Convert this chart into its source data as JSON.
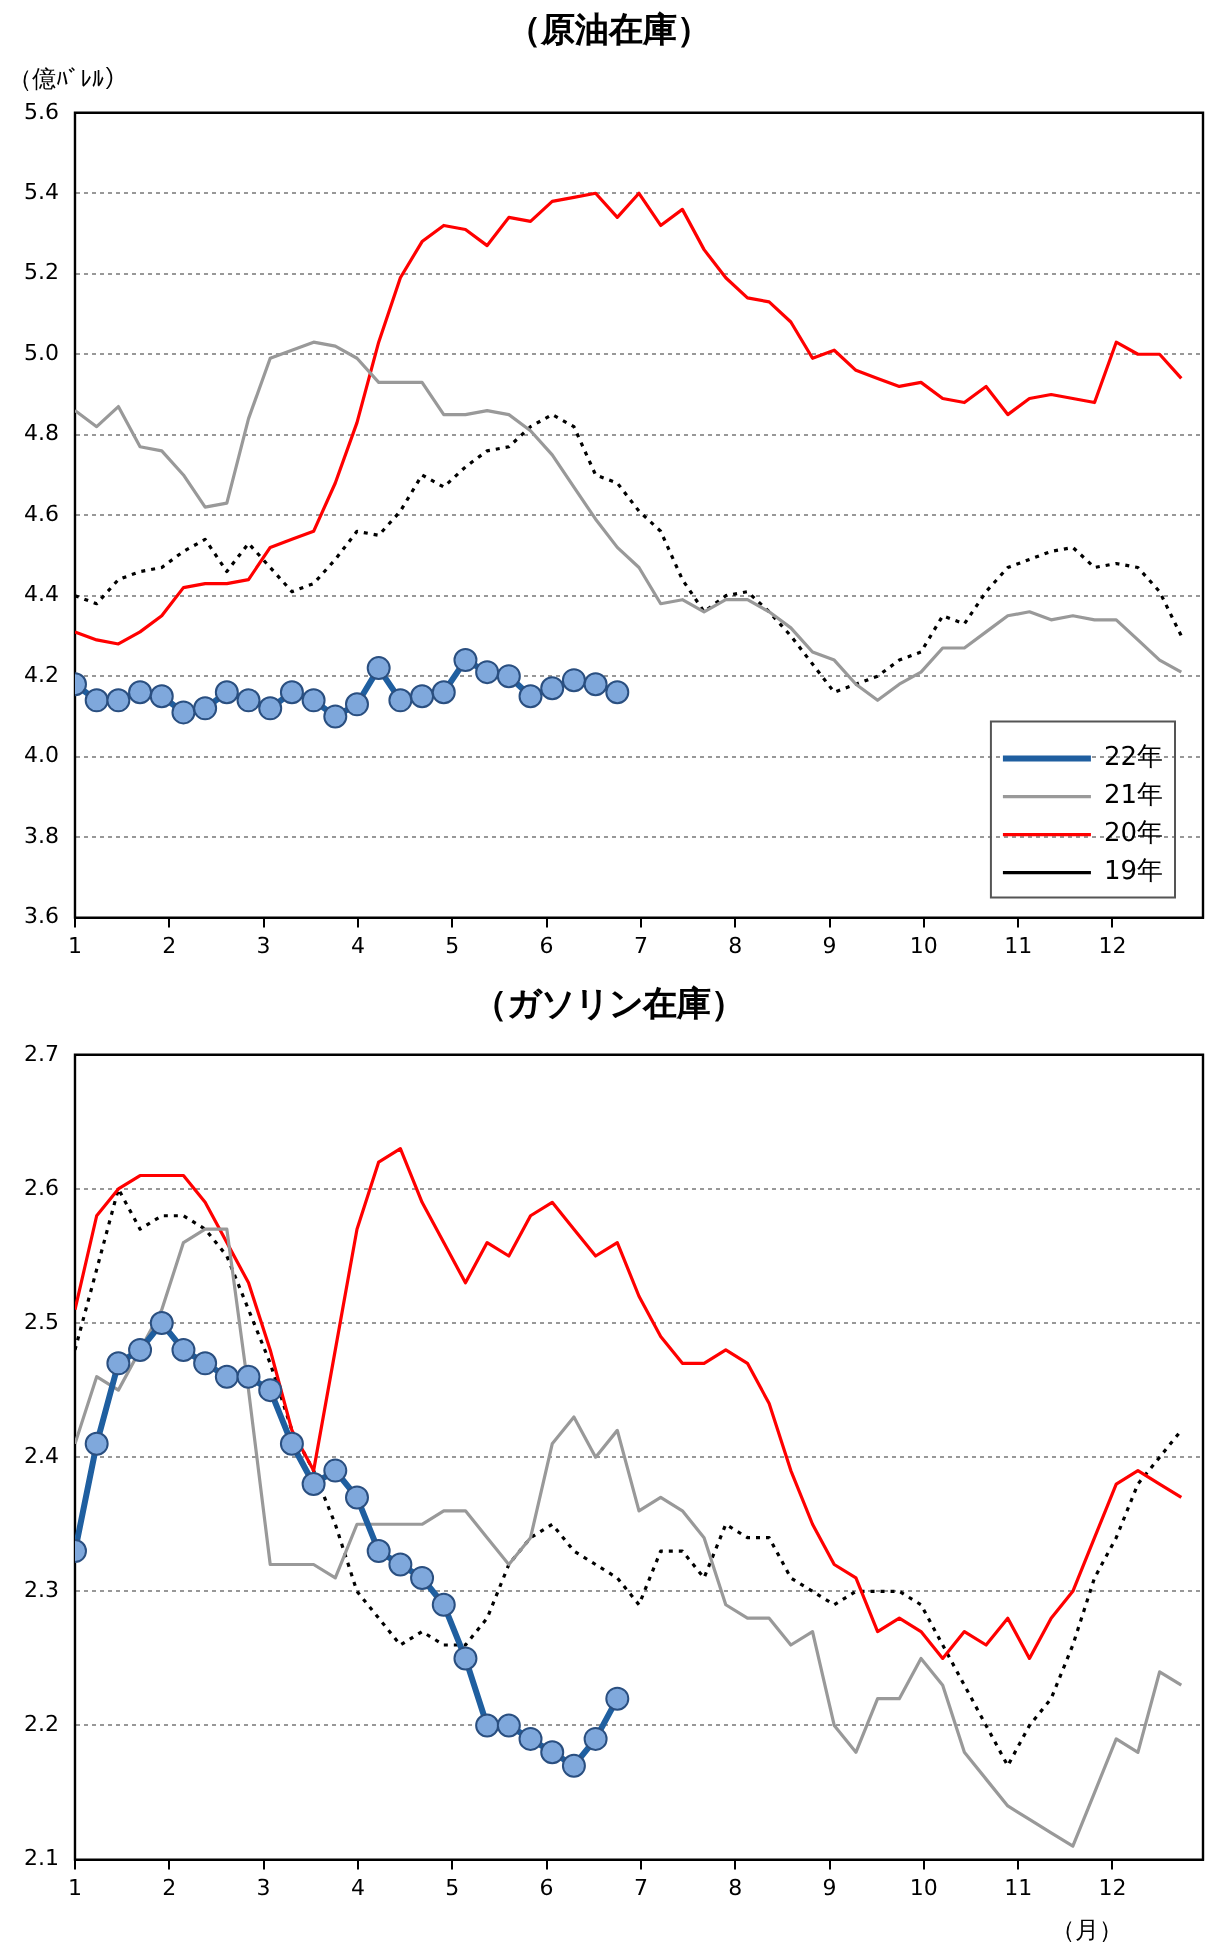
{
  "chart_data": [
    {
      "type": "line",
      "title": "（原油在庫）",
      "ylabel": "（億ﾊﾞﾚﾙ）",
      "x": [
        1,
        1.23,
        1.46,
        1.69,
        1.92,
        2.15,
        2.38,
        2.61,
        2.84,
        3.07,
        3.3,
        3.53,
        3.76,
        3.99,
        4.22,
        4.45,
        4.68,
        4.91,
        5.14,
        5.37,
        5.6,
        5.83,
        6.06,
        6.29,
        6.52,
        6.75,
        6.98,
        7.21,
        7.44,
        7.67,
        7.9,
        8.13,
        8.36,
        8.59,
        8.82,
        9.05,
        9.28,
        9.51,
        9.74,
        9.97,
        10.2,
        10.43,
        10.66,
        10.89,
        11.12,
        11.35,
        11.58,
        11.81,
        12.04,
        12.27,
        12.5,
        12.73
      ],
      "xlim": [
        1,
        12.96
      ],
      "xticks": [
        1,
        2,
        3,
        4,
        5,
        6,
        7,
        8,
        9,
        10,
        11,
        12
      ],
      "ylim": [
        3.6,
        5.6
      ],
      "yticks": [
        3.6,
        3.8,
        {
          "value": 4,
          "label": "4.0"
        },
        4.2,
        4.4,
        4.6,
        4.8,
        {
          "value": 5,
          "label": "5.0"
        },
        5.2,
        5.4,
        5.6
      ],
      "grid": "y",
      "legend": "bottom right",
      "series": [
        {
          "name": "22年",
          "color": "#1f5fa0",
          "marker": "circle",
          "x": [
            1,
            1.23,
            1.46,
            1.69,
            1.92,
            2.15,
            2.38,
            2.61,
            2.84,
            3.07,
            3.3,
            3.53,
            3.76,
            3.99,
            4.22,
            4.45,
            4.68,
            4.91,
            5.14,
            5.37,
            5.6,
            5.83,
            6.06,
            6.29,
            6.52,
            6.75
          ],
          "values": [
            4.18,
            4.14,
            4.14,
            4.16,
            4.15,
            4.11,
            4.12,
            4.16,
            4.14,
            4.12,
            4.16,
            4.14,
            4.1,
            4.13,
            4.22,
            4.14,
            4.15,
            4.16,
            4.24,
            4.21,
            4.2,
            4.15,
            4.17,
            4.19,
            4.18,
            4.16
          ]
        },
        {
          "name": "21年",
          "color": "#999999",
          "values": [
            4.86,
            4.82,
            4.87,
            4.77,
            4.76,
            4.7,
            4.62,
            4.63,
            4.84,
            4.99,
            5.01,
            5.03,
            5.02,
            4.99,
            4.93,
            4.93,
            4.93,
            4.85,
            4.85,
            4.86,
            4.85,
            4.81,
            4.75,
            4.67,
            4.59,
            4.52,
            4.47,
            4.38,
            4.39,
            4.36,
            4.39,
            4.39,
            4.36,
            4.32,
            4.26,
            4.24,
            4.18,
            4.14,
            4.18,
            4.21,
            4.27,
            4.27,
            4.31,
            4.35,
            4.36,
            4.34,
            4.35,
            4.34,
            4.34,
            4.29,
            4.24,
            4.21
          ]
        },
        {
          "name": "20年",
          "color": "#ff0000",
          "values": [
            4.31,
            4.29,
            4.28,
            4.31,
            4.35,
            4.42,
            4.43,
            4.43,
            4.44,
            4.52,
            4.54,
            4.56,
            4.68,
            4.83,
            5.03,
            5.19,
            5.28,
            5.32,
            5.31,
            5.27,
            5.34,
            5.33,
            5.38,
            5.39,
            5.4,
            5.34,
            5.4,
            5.32,
            5.36,
            5.26,
            5.19,
            5.14,
            5.13,
            5.08,
            4.99,
            5.01,
            4.96,
            4.94,
            4.92,
            4.93,
            4.89,
            4.88,
            4.92,
            4.85,
            4.89,
            4.9,
            4.89,
            4.88,
            5.03,
            5,
            5,
            4.94
          ]
        },
        {
          "name": "19年",
          "color": "#000000",
          "line_style": "dotted",
          "values": [
            4.4,
            4.38,
            4.44,
            4.46,
            4.47,
            4.51,
            4.54,
            4.46,
            4.53,
            4.47,
            4.41,
            4.43,
            4.49,
            4.56,
            4.55,
            4.61,
            4.7,
            4.67,
            4.72,
            4.76,
            4.77,
            4.82,
            4.85,
            4.82,
            4.7,
            4.68,
            4.61,
            4.56,
            4.44,
            4.36,
            4.4,
            4.41,
            4.36,
            4.3,
            4.23,
            4.16,
            4.18,
            4.2,
            4.24,
            4.26,
            4.35,
            4.33,
            4.41,
            4.47,
            4.49,
            4.51,
            4.52,
            4.47,
            4.48,
            4.47,
            4.41,
            4.3
          ]
        }
      ]
    },
    {
      "type": "line",
      "title": "（ガソリン在庫）",
      "xlabel": "（月）",
      "x": [
        1,
        1.23,
        1.46,
        1.69,
        1.92,
        2.15,
        2.38,
        2.61,
        2.84,
        3.07,
        3.3,
        3.53,
        3.76,
        3.99,
        4.22,
        4.45,
        4.68,
        4.91,
        5.14,
        5.37,
        5.6,
        5.83,
        6.06,
        6.29,
        6.52,
        6.75,
        6.98,
        7.21,
        7.44,
        7.67,
        7.9,
        8.13,
        8.36,
        8.59,
        8.82,
        9.05,
        9.28,
        9.51,
        9.74,
        9.97,
        10.2,
        10.43,
        10.66,
        10.89,
        11.12,
        11.35,
        11.58,
        11.81,
        12.04,
        12.27,
        12.5,
        12.73
      ],
      "xlim": [
        1,
        12.96
      ],
      "xticks": [
        1,
        2,
        3,
        4,
        5,
        6,
        7,
        8,
        9,
        10,
        11,
        12
      ],
      "ylim": [
        2.1,
        2.7
      ],
      "yticks": [
        2.1,
        2.2,
        2.3,
        2.4,
        2.5,
        2.6,
        2.7
      ],
      "grid": "y",
      "series": [
        {
          "color": "#1f5fa0",
          "marker": "circle",
          "x": [
            1,
            1.23,
            1.46,
            1.69,
            1.92,
            2.15,
            2.38,
            2.61,
            2.84,
            3.07,
            3.3,
            3.53,
            3.76,
            3.99,
            4.22,
            4.45,
            4.68,
            4.91,
            5.14,
            5.37,
            5.6,
            5.83,
            6.06,
            6.29,
            6.52,
            6.75
          ],
          "values": [
            2.33,
            2.41,
            2.47,
            2.48,
            2.5,
            2.48,
            2.47,
            2.46,
            2.46,
            2.45,
            2.41,
            2.38,
            2.39,
            2.37,
            2.33,
            2.32,
            2.31,
            2.29,
            2.25,
            2.2,
            2.2,
            2.19,
            2.18,
            2.17,
            2.19,
            2.22
          ]
        },
        {
          "color": "#999999",
          "values": [
            2.41,
            2.46,
            2.45,
            2.48,
            2.51,
            2.56,
            2.57,
            2.57,
            2.45,
            2.32,
            2.32,
            2.32,
            2.31,
            2.35,
            2.35,
            2.35,
            2.35,
            2.36,
            2.36,
            2.34,
            2.32,
            2.34,
            2.41,
            2.43,
            2.4,
            2.42,
            2.36,
            2.37,
            2.36,
            2.34,
            2.29,
            2.28,
            2.28,
            2.26,
            2.27,
            2.2,
            2.18,
            2.22,
            2.22,
            2.25,
            2.23,
            2.18,
            2.16,
            2.14,
            2.13,
            2.12,
            2.11,
            2.15,
            2.19,
            2.18,
            2.24,
            2.23
          ]
        },
        {
          "color": "#ff0000",
          "values": [
            2.51,
            2.58,
            2.6,
            2.61,
            2.61,
            2.61,
            2.59,
            2.56,
            2.53,
            2.48,
            2.42,
            2.39,
            2.48,
            2.57,
            2.62,
            2.63,
            2.59,
            2.56,
            2.53,
            2.56,
            2.55,
            2.58,
            2.59,
            2.57,
            2.55,
            2.56,
            2.52,
            2.49,
            2.47,
            2.47,
            2.48,
            2.47,
            2.44,
            2.39,
            2.35,
            2.32,
            2.31,
            2.27,
            2.28,
            2.27,
            2.25,
            2.27,
            2.26,
            2.28,
            2.25,
            2.28,
            2.3,
            2.34,
            2.38,
            2.39,
            2.38,
            2.37
          ]
        },
        {
          "color": "#000000",
          "line_style": "dotted",
          "values": [
            2.48,
            2.54,
            2.6,
            2.57,
            2.58,
            2.58,
            2.57,
            2.55,
            2.51,
            2.47,
            2.42,
            2.39,
            2.35,
            2.3,
            2.28,
            2.26,
            2.27,
            2.26,
            2.26,
            2.28,
            2.32,
            2.34,
            2.35,
            2.33,
            2.32,
            2.31,
            2.29,
            2.33,
            2.33,
            2.31,
            2.35,
            2.34,
            2.34,
            2.31,
            2.3,
            2.29,
            2.3,
            2.3,
            2.3,
            2.29,
            2.26,
            2.23,
            2.2,
            2.17,
            2.2,
            2.22,
            2.26,
            2.31,
            2.34,
            2.38,
            2.4,
            2.42
          ]
        }
      ]
    }
  ]
}
